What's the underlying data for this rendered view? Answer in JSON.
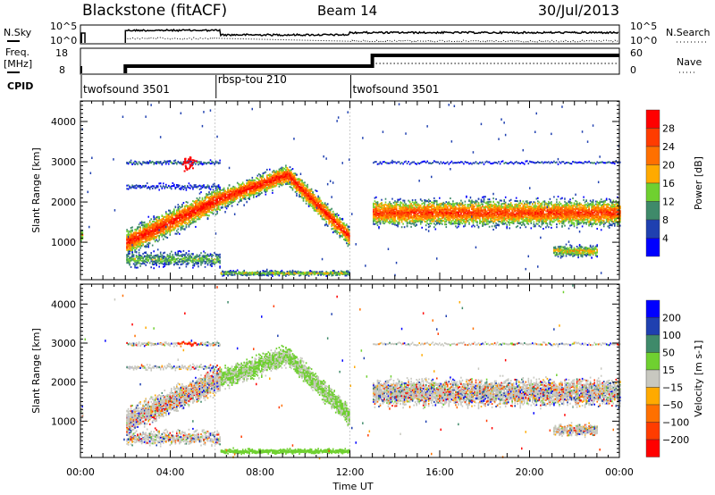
{
  "header": {
    "station": "Blackstone (fitACF)",
    "beam": "Beam 14",
    "date": "30/Jul/2013"
  },
  "top_panels": {
    "nsky_label": "N.Sky",
    "nsky_ticks": [
      "10^5",
      "10^0"
    ],
    "nsearch_label": "N.Search",
    "nsearch_ticks": [
      "10^5",
      "10^0"
    ],
    "freq_label": "Freq.",
    "freq_unit": "[MHz]",
    "freq_ticks": [
      "18",
      "8"
    ],
    "nave_label": "Nave",
    "nave_ticks": [
      "60",
      "0"
    ],
    "cpid_label": "CPID",
    "cpid": [
      {
        "name": "twofsound 3501",
        "start_hour": 0
      },
      {
        "name": "rbsp-tou 210",
        "start_hour": 6
      },
      {
        "name": "twofsound 3501",
        "start_hour": 12
      }
    ]
  },
  "chart_data": [
    {
      "type": "heatmap",
      "name": "power",
      "ylabel": "Slant Range [km]",
      "ylim": [
        70,
        4510
      ],
      "yticks": [
        "1000",
        "2000",
        "3000",
        "4000"
      ],
      "xlim": [
        0,
        24
      ],
      "colorbar": {
        "label": "Power [dB]",
        "ticks": [
          "28",
          "24",
          "20",
          "16",
          "12",
          "8",
          "4"
        ],
        "colors": [
          "#ff0000",
          "#ff3c00",
          "#ff7000",
          "#ffaa00",
          "#6fd030",
          "#3f8a6a",
          "#1f40b0",
          "#0000ff"
        ]
      }
    },
    {
      "type": "heatmap",
      "name": "velocity",
      "ylabel": "Slant Range [km]",
      "ylim": [
        70,
        4510
      ],
      "yticks": [
        "1000",
        "2000",
        "3000",
        "4000"
      ],
      "xlim": [
        0,
        24
      ],
      "xlabel": "Time UT",
      "xticks": [
        "00:00",
        "04:00",
        "08:00",
        "12:00",
        "16:00",
        "20:00",
        "00:00"
      ],
      "colorbar": {
        "label": "Velocity [m s-1]",
        "ticks": [
          "200",
          "100",
          "50",
          "15",
          "−15",
          "−50",
          "−100",
          "−200"
        ],
        "colors": [
          "#0000ff",
          "#1f40b0",
          "#3f8a6a",
          "#6fd030",
          "#c8c8c0",
          "#ffaa00",
          "#ff7000",
          "#ff3c00",
          "#ff0000"
        ]
      }
    }
  ]
}
